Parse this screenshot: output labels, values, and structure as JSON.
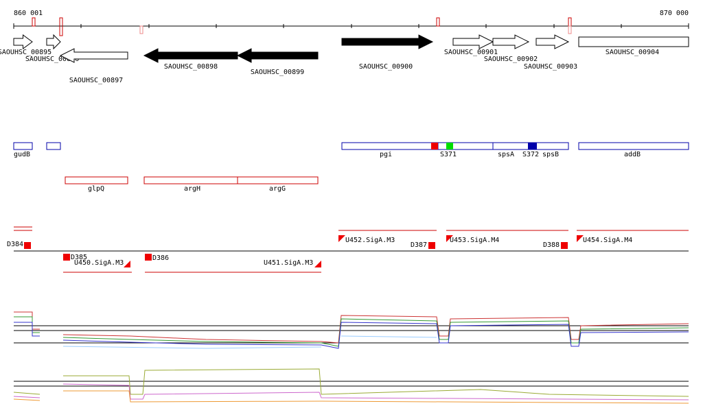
{
  "ruler": {
    "start": "860 001",
    "end": "870 000"
  },
  "genes": [
    "SAOUHSC_00895",
    "SAOUHSC_00896",
    "SAOUHSC_00897",
    "SAOUHSC_00898",
    "SAOUHSC_00899",
    "SAOUHSC_00900",
    "SAOUHSC_00901",
    "SAOUHSC_00902",
    "SAOUHSC_00903",
    "SAOUHSC_00904"
  ],
  "blue_features": [
    "gudB",
    "pgi",
    "S371",
    "spsA",
    "S372",
    "spsB",
    "addB"
  ],
  "red_features": [
    "glpQ",
    "argH",
    "argG"
  ],
  "segments": [
    "D384",
    "D385",
    "U450.SigA.M3",
    "D386",
    "U451.SigA.M3",
    "U452.SigA.M3",
    "D387",
    "U453.SigA.M4",
    "D388",
    "U454.SigA.M4"
  ]
}
